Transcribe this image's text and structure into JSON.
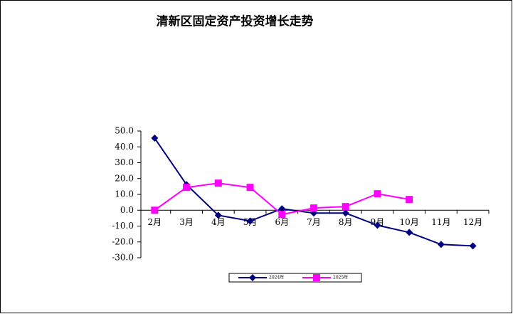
{
  "chart_data": {
    "type": "line",
    "title": "清新区固定资产投资增长走势",
    "categories": [
      "2月",
      "3月",
      "4月",
      "5月",
      "6月",
      "7月",
      "8月",
      "9月",
      "10月",
      "11月",
      "12月"
    ],
    "series": [
      {
        "name": "2024年",
        "color": "#000080",
        "marker": "diamond",
        "values": [
          45.5,
          16.2,
          -3.2,
          -6.8,
          0.9,
          -1.8,
          -1.8,
          -9.5,
          -14.0,
          -21.6,
          -22.5
        ]
      },
      {
        "name": "2025年",
        "color": "#ff00ff",
        "marker": "square",
        "values": [
          0.0,
          14.4,
          17.1,
          14.4,
          -2.7,
          1.4,
          2.3,
          10.4,
          6.8,
          null,
          null
        ]
      }
    ],
    "ylim": [
      -30,
      50
    ],
    "yticks": [
      {
        "value": -30,
        "label": "-30.0"
      },
      {
        "value": -20,
        "label": "-20.0"
      },
      {
        "value": -10,
        "label": "-10.0"
      },
      {
        "value": 0,
        "label": "0.0"
      },
      {
        "value": 10,
        "label": "10.0"
      },
      {
        "value": 20,
        "label": "20.0"
      },
      {
        "value": 30,
        "label": "30.0"
      },
      {
        "value": 40,
        "label": "40.0"
      },
      {
        "value": 50,
        "label": "50.0"
      }
    ],
    "legend": "bottom"
  }
}
